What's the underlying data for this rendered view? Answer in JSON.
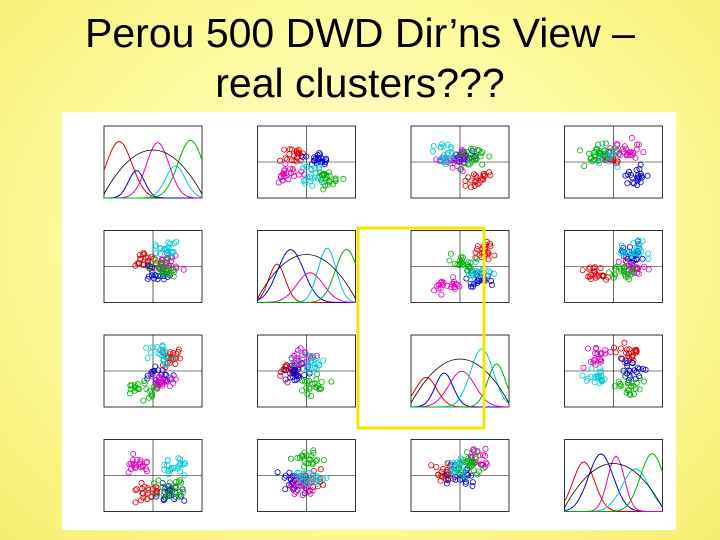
{
  "title": {
    "lines": [
      "Perou 500 DWD Dir’ns View –",
      "real clusters???"
    ]
  }
}
